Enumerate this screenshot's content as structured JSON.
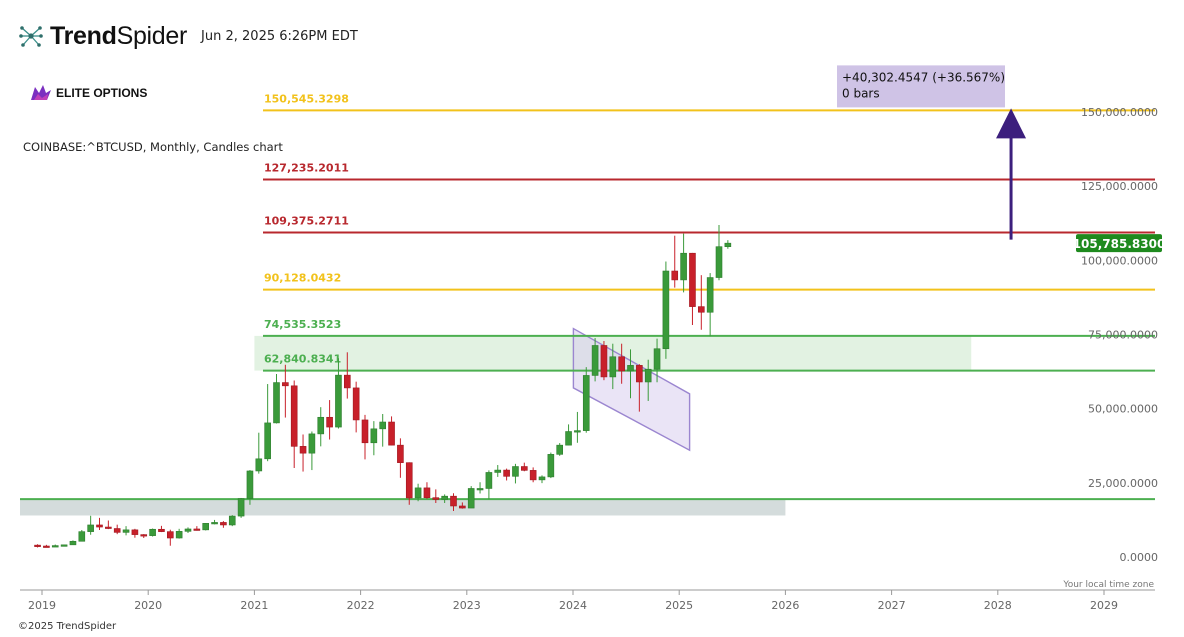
{
  "header": {
    "brand_bold": "Trend",
    "brand_light": "Spider",
    "timestamp": "Jun 2, 2025 6:26PM EDT"
  },
  "watermark": {
    "label": "ELITE OPTIONS"
  },
  "symbol_line": "COINBASE:^BTCUSD, Monthly, Candles chart",
  "footer": "©2025 TrendSpider",
  "timezone_note": "Your local time zone",
  "measure_box": {
    "line1": "+40,302.4547 (+36.567%)",
    "line2": "0 bars"
  },
  "price_tag": "105,785.8300",
  "colors": {
    "up": "#3a9a3a",
    "down": "#c8202a",
    "yellow": "#f2c21b",
    "red": "#b8282e",
    "green": "#4caf50",
    "arrow": "#3c1f7d",
    "tag": "#1e8a1e"
  },
  "chart_data": {
    "type": "candlestick",
    "title": "COINBASE:^BTCUSD, Monthly, Candles chart",
    "ylim": [
      0,
      150000
    ],
    "y_ticks": [
      "150,000.0000",
      "125,000.0000",
      "100,000.0000",
      "75,000.0000",
      "50,000.0000",
      "25,000.0000",
      "0.0000"
    ],
    "y_tick_values": [
      150000,
      125000,
      100000,
      75000,
      50000,
      25000,
      0
    ],
    "x_ticks": [
      "2019",
      "2020",
      "2021",
      "2022",
      "2023",
      "2024",
      "2025",
      "2026",
      "2027",
      "2028",
      "2029"
    ],
    "xlim": [
      "2018-12",
      "2029-04"
    ],
    "levels": [
      {
        "label": "150,545.3298",
        "value": 150545.3298,
        "color": "yellow"
      },
      {
        "label": "127,235.2011",
        "value": 127235.2011,
        "color": "red"
      },
      {
        "label": "109,375.2711",
        "value": 109375.2711,
        "color": "red"
      },
      {
        "label": "90,128.0432",
        "value": 90128.0432,
        "color": "yellow"
      },
      {
        "label": "74,535.3523",
        "value": 74535.3523,
        "color": "green"
      },
      {
        "label": "62,840.8341",
        "value": 62840.8341,
        "color": "green"
      }
    ],
    "support_line": 19500,
    "zones": [
      {
        "from": "2018-12",
        "to": "2026-01",
        "low": 14000,
        "high": 19500,
        "color": "grey"
      },
      {
        "from": "2021-01",
        "to": "2027-10",
        "low": 62840.8341,
        "high": 74535.3523,
        "color": "green"
      }
    ],
    "channel": {
      "x0": "2024-01",
      "x1": "2025-01",
      "top0": 77000,
      "top1": 55000,
      "bot0": 57000,
      "bot1": 36000
    },
    "arrow": {
      "x": "2028-02",
      "from": 108000,
      "to": 150545.3298
    },
    "last_price": 105785.83,
    "candles": [
      {
        "t": "2018-12",
        "o": 4000,
        "h": 4300,
        "l": 3200,
        "c": 3700
      },
      {
        "t": "2019-01",
        "o": 3700,
        "h": 4100,
        "l": 3400,
        "c": 3450
      },
      {
        "t": "2019-02",
        "o": 3450,
        "h": 4200,
        "l": 3400,
        "c": 3850
      },
      {
        "t": "2019-03",
        "o": 3850,
        "h": 4100,
        "l": 3700,
        "c": 4100
      },
      {
        "t": "2019-04",
        "o": 4100,
        "h": 5600,
        "l": 4050,
        "c": 5300
      },
      {
        "t": "2019-05",
        "o": 5300,
        "h": 9100,
        "l": 5300,
        "c": 8550
      },
      {
        "t": "2019-06",
        "o": 8550,
        "h": 13900,
        "l": 7500,
        "c": 10800
      },
      {
        "t": "2019-07",
        "o": 10800,
        "h": 13200,
        "l": 9100,
        "c": 10100
      },
      {
        "t": "2019-08",
        "o": 10100,
        "h": 12300,
        "l": 9400,
        "c": 9600
      },
      {
        "t": "2019-09",
        "o": 9600,
        "h": 10900,
        "l": 7700,
        "c": 8300
      },
      {
        "t": "2019-10",
        "o": 8300,
        "h": 10400,
        "l": 7300,
        "c": 9150
      },
      {
        "t": "2019-11",
        "o": 9150,
        "h": 9500,
        "l": 6500,
        "c": 7550
      },
      {
        "t": "2019-12",
        "o": 7550,
        "h": 7700,
        "l": 6400,
        "c": 7200
      },
      {
        "t": "2020-01",
        "o": 7200,
        "h": 9600,
        "l": 6900,
        "c": 9350
      },
      {
        "t": "2020-02",
        "o": 9350,
        "h": 10500,
        "l": 8400,
        "c": 8550
      },
      {
        "t": "2020-03",
        "o": 8550,
        "h": 9200,
        "l": 3800,
        "c": 6400
      },
      {
        "t": "2020-04",
        "o": 6400,
        "h": 9500,
        "l": 6200,
        "c": 8650
      },
      {
        "t": "2020-05",
        "o": 8650,
        "h": 10000,
        "l": 8100,
        "c": 9450
      },
      {
        "t": "2020-06",
        "o": 9450,
        "h": 10400,
        "l": 8900,
        "c": 9150
      },
      {
        "t": "2020-07",
        "o": 9150,
        "h": 11450,
        "l": 8950,
        "c": 11350
      },
      {
        "t": "2020-08",
        "o": 11350,
        "h": 12500,
        "l": 11000,
        "c": 11650
      },
      {
        "t": "2020-09",
        "o": 11650,
        "h": 12100,
        "l": 9850,
        "c": 10800
      },
      {
        "t": "2020-10",
        "o": 10800,
        "h": 14100,
        "l": 10400,
        "c": 13800
      },
      {
        "t": "2020-11",
        "o": 13800,
        "h": 19900,
        "l": 13200,
        "c": 19700
      },
      {
        "t": "2020-12",
        "o": 19700,
        "h": 29300,
        "l": 17600,
        "c": 29000
      },
      {
        "t": "2021-01",
        "o": 29000,
        "h": 41900,
        "l": 28100,
        "c": 33100
      },
      {
        "t": "2021-02",
        "o": 33100,
        "h": 58300,
        "l": 32300,
        "c": 45200
      },
      {
        "t": "2021-03",
        "o": 45200,
        "h": 61700,
        "l": 45000,
        "c": 58800
      },
      {
        "t": "2021-04",
        "o": 58800,
        "h": 64800,
        "l": 47000,
        "c": 57700
      },
      {
        "t": "2021-05",
        "o": 57700,
        "h": 59500,
        "l": 30000,
        "c": 37300
      },
      {
        "t": "2021-06",
        "o": 37300,
        "h": 41300,
        "l": 28800,
        "c": 35000
      },
      {
        "t": "2021-07",
        "o": 35000,
        "h": 42300,
        "l": 29300,
        "c": 41500
      },
      {
        "t": "2021-08",
        "o": 41500,
        "h": 50500,
        "l": 37300,
        "c": 47100
      },
      {
        "t": "2021-09",
        "o": 47100,
        "h": 52900,
        "l": 39600,
        "c": 43800
      },
      {
        "t": "2021-10",
        "o": 43800,
        "h": 67000,
        "l": 43300,
        "c": 61300
      },
      {
        "t": "2021-11",
        "o": 61300,
        "h": 69000,
        "l": 53400,
        "c": 57000
      },
      {
        "t": "2021-12",
        "o": 57000,
        "h": 59100,
        "l": 42000,
        "c": 46200
      },
      {
        "t": "2022-01",
        "o": 46200,
        "h": 47900,
        "l": 32900,
        "c": 38500
      },
      {
        "t": "2022-02",
        "o": 38500,
        "h": 45800,
        "l": 34300,
        "c": 43200
      },
      {
        "t": "2022-03",
        "o": 43200,
        "h": 48200,
        "l": 37200,
        "c": 45500
      },
      {
        "t": "2022-04",
        "o": 45500,
        "h": 47400,
        "l": 37600,
        "c": 37700
      },
      {
        "t": "2022-05",
        "o": 37700,
        "h": 40000,
        "l": 26700,
        "c": 31800
      },
      {
        "t": "2022-06",
        "o": 31800,
        "h": 31900,
        "l": 17600,
        "c": 19900
      },
      {
        "t": "2022-07",
        "o": 19900,
        "h": 24700,
        "l": 18800,
        "c": 23300
      },
      {
        "t": "2022-08",
        "o": 23300,
        "h": 25200,
        "l": 19600,
        "c": 20000
      },
      {
        "t": "2022-09",
        "o": 20000,
        "h": 22800,
        "l": 18200,
        "c": 19400
      },
      {
        "t": "2022-10",
        "o": 19400,
        "h": 21100,
        "l": 18200,
        "c": 20500
      },
      {
        "t": "2022-11",
        "o": 20500,
        "h": 21500,
        "l": 15500,
        "c": 17200
      },
      {
        "t": "2022-12",
        "o": 17200,
        "h": 18400,
        "l": 16300,
        "c": 16500
      },
      {
        "t": "2023-01",
        "o": 16500,
        "h": 23900,
        "l": 16500,
        "c": 23100
      },
      {
        "t": "2023-02",
        "o": 23100,
        "h": 25200,
        "l": 21400,
        "c": 23100
      },
      {
        "t": "2023-03",
        "o": 23100,
        "h": 29200,
        "l": 19500,
        "c": 28500
      },
      {
        "t": "2023-04",
        "o": 28500,
        "h": 31000,
        "l": 27000,
        "c": 29300
      },
      {
        "t": "2023-05",
        "o": 29300,
        "h": 29800,
        "l": 25800,
        "c": 27200
      },
      {
        "t": "2023-06",
        "o": 27200,
        "h": 31400,
        "l": 24800,
        "c": 30500
      },
      {
        "t": "2023-07",
        "o": 30500,
        "h": 31800,
        "l": 28900,
        "c": 29200
      },
      {
        "t": "2023-08",
        "o": 29200,
        "h": 30200,
        "l": 25200,
        "c": 26000
      },
      {
        "t": "2023-09",
        "o": 26000,
        "h": 27500,
        "l": 24900,
        "c": 27000
      },
      {
        "t": "2023-10",
        "o": 27000,
        "h": 35200,
        "l": 26600,
        "c": 34600
      },
      {
        "t": "2023-11",
        "o": 34600,
        "h": 38400,
        "l": 34100,
        "c": 37700
      },
      {
        "t": "2023-12",
        "o": 37700,
        "h": 44700,
        "l": 37600,
        "c": 42300
      },
      {
        "t": "2024-01",
        "o": 42300,
        "h": 48900,
        "l": 38500,
        "c": 42600
      },
      {
        "t": "2024-02",
        "o": 42600,
        "h": 64000,
        "l": 41900,
        "c": 61200
      },
      {
        "t": "2024-03",
        "o": 61200,
        "h": 73800,
        "l": 59200,
        "c": 71300
      },
      {
        "t": "2024-04",
        "o": 71300,
        "h": 72800,
        "l": 59600,
        "c": 60700
      },
      {
        "t": "2024-05",
        "o": 60700,
        "h": 71900,
        "l": 56600,
        "c": 67500
      },
      {
        "t": "2024-06",
        "o": 67500,
        "h": 71900,
        "l": 58400,
        "c": 62700
      },
      {
        "t": "2024-07",
        "o": 62700,
        "h": 70000,
        "l": 53500,
        "c": 64600
      },
      {
        "t": "2024-08",
        "o": 64600,
        "h": 65000,
        "l": 49000,
        "c": 59000
      },
      {
        "t": "2024-09",
        "o": 59000,
        "h": 66500,
        "l": 52600,
        "c": 63300
      },
      {
        "t": "2024-10",
        "o": 63300,
        "h": 73600,
        "l": 58900,
        "c": 70200
      },
      {
        "t": "2024-11",
        "o": 70200,
        "h": 99600,
        "l": 66800,
        "c": 96400
      },
      {
        "t": "2024-12",
        "o": 96400,
        "h": 108300,
        "l": 90800,
        "c": 93400
      },
      {
        "t": "2025-01",
        "o": 93400,
        "h": 109000,
        "l": 89200,
        "c": 102400
      },
      {
        "t": "2025-02",
        "o": 102400,
        "h": 102500,
        "l": 78200,
        "c": 84400
      },
      {
        "t": "2025-03",
        "o": 84400,
        "h": 95000,
        "l": 76600,
        "c": 82500
      },
      {
        "t": "2025-04",
        "o": 82500,
        "h": 95700,
        "l": 74400,
        "c": 94200
      },
      {
        "t": "2025-05",
        "o": 94200,
        "h": 111900,
        "l": 93300,
        "c": 104600
      },
      {
        "t": "2025-06",
        "o": 104600,
        "h": 106800,
        "l": 103900,
        "c": 105786
      }
    ]
  }
}
